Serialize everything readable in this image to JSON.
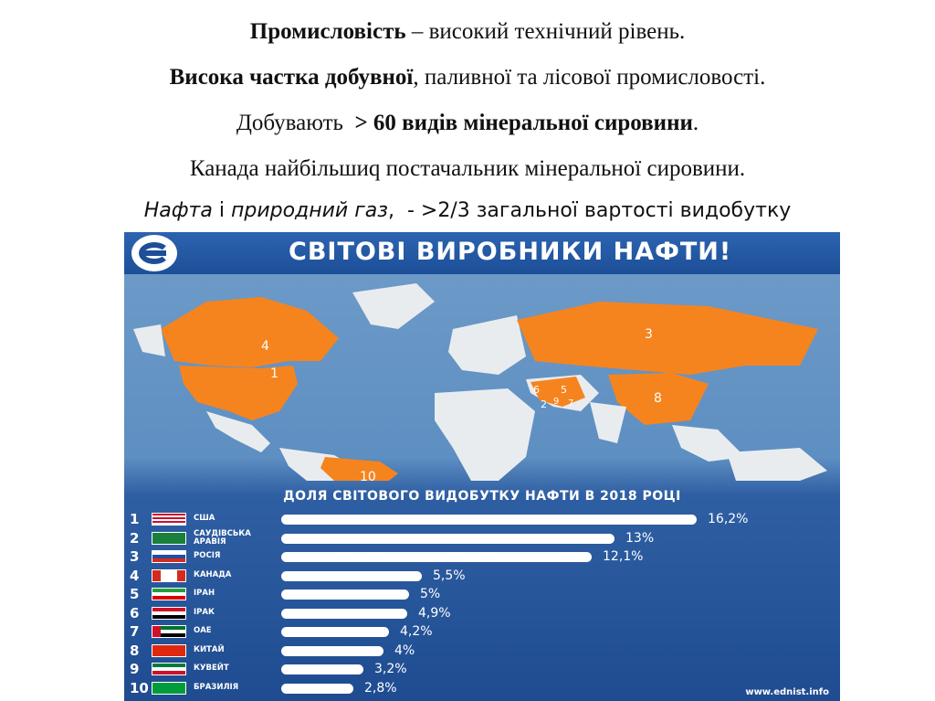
{
  "text": {
    "l1_bold": "Промисловість",
    "l1_rest": " – високий технічний рівень.",
    "l2_bold": "Висока частка добувної",
    "l2_rest": ", паливної та лісової промисловості.",
    "l3_start": "Добувають  ",
    "l3_bold": "> 60 видів мінеральної сировини",
    "l3_end": ".",
    "l4": "Канада найбільшиq постачальник мінеральної сировини.",
    "l5_i1": "Нафта",
    "l5_mid": " і ",
    "l5_i2": "природний газ",
    "l5_rest": ",  - >2/3 загальної вартості видобутку"
  },
  "infographic": {
    "banner_title": "СВІТОВІ ВИРОБНИКИ НАФТИ!",
    "chart_title": "ДОЛЯ СВІТОВОГО ВИДОБУТКУ НАФТИ В 2018 РОЦІ",
    "credit": "www.ednist.info",
    "map_labels": [
      "4",
      "1",
      "3",
      "8",
      "10",
      "6",
      "5",
      "2",
      "9",
      "7"
    ],
    "colors": {
      "highlight": "#f5841f",
      "land": "#e9ecef",
      "banner": "#1d4f98"
    }
  },
  "chart_data": {
    "type": "bar",
    "title": "ДОЛЯ СВІТОВОГО ВИДОБУТКУ НАФТИ В 2018 РОЦІ",
    "ranks": [
      "1",
      "2",
      "3",
      "4",
      "5",
      "6",
      "7",
      "8",
      "9",
      "10"
    ],
    "categories": [
      "США",
      "САУДІВСЬКА АРАВІЯ",
      "РОСІЯ",
      "КАНАДА",
      "ІРАН",
      "ІРАК",
      "ОАЕ",
      "КИТАЙ",
      "КУВЕЙТ",
      "БРАЗИЛІЯ"
    ],
    "values": [
      16.2,
      13,
      12.1,
      5.5,
      5,
      4.9,
      4.2,
      4,
      3.2,
      2.8
    ],
    "value_labels": [
      "16,2%",
      "13%",
      "12,1%",
      "5,5%",
      "5%",
      "4,9%",
      "4,2%",
      "4%",
      "3,2%",
      "2,8%"
    ],
    "flags": [
      "usa-flag-icon",
      "saudi-flag-icon",
      "russia-flag-icon",
      "canada-flag-icon",
      "iran-flag-icon",
      "iraq-flag-icon",
      "uae-flag-icon",
      "china-flag-icon",
      "kuwait-flag-icon",
      "brazil-flag-icon"
    ]
  }
}
